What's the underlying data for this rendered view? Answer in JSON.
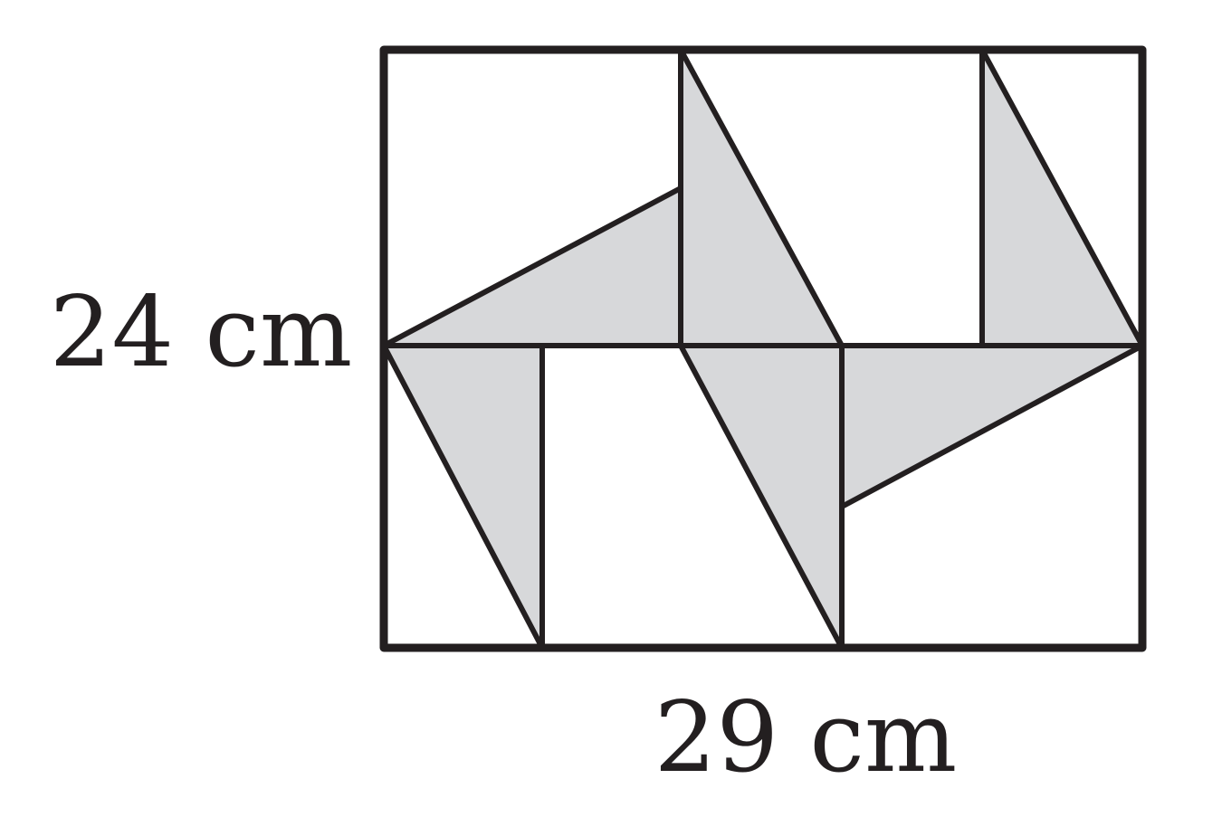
{
  "figure": {
    "height_label": "24 cm",
    "width_label": "29 cm"
  },
  "colors": {
    "stroke": "#231f20",
    "shade": "#d7d8da",
    "background": "#ffffff"
  }
}
